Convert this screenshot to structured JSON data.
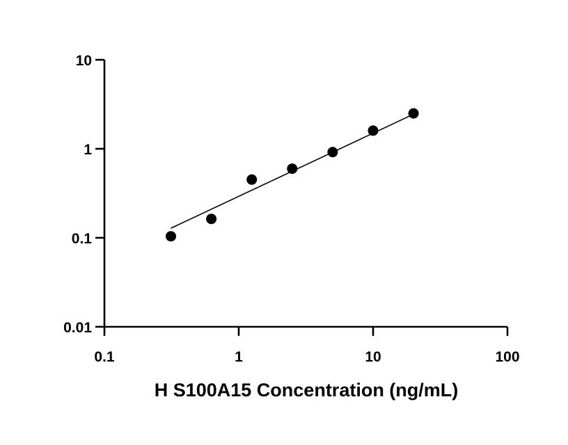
{
  "chart_data": {
    "type": "scatter",
    "xlabel": "H S100A15 Concentration (ng/mL)",
    "ylabel": "",
    "title": "",
    "x_scale": "log",
    "y_scale": "log",
    "xlim": [
      0.1,
      100
    ],
    "ylim": [
      0.01,
      10
    ],
    "x_ticks": [
      "0.1",
      "1",
      "10",
      "100"
    ],
    "y_ticks": [
      "0.01",
      "0.1",
      "1",
      "10"
    ],
    "grid": false,
    "legend": "none",
    "series": [
      {
        "x": [
          0.3125,
          0.625,
          1.25,
          2.5,
          5,
          10,
          20
        ],
        "y": [
          0.104,
          0.163,
          0.451,
          0.598,
          0.918,
          1.6,
          2.5
        ]
      }
    ],
    "fit_line": {
      "x_range": [
        0.3125,
        20
      ],
      "y_at_start": 0.128,
      "y_at_end": 2.45
    },
    "colors": {
      "marker": "#000000",
      "axis": "#000000",
      "fit": "#000000"
    }
  }
}
